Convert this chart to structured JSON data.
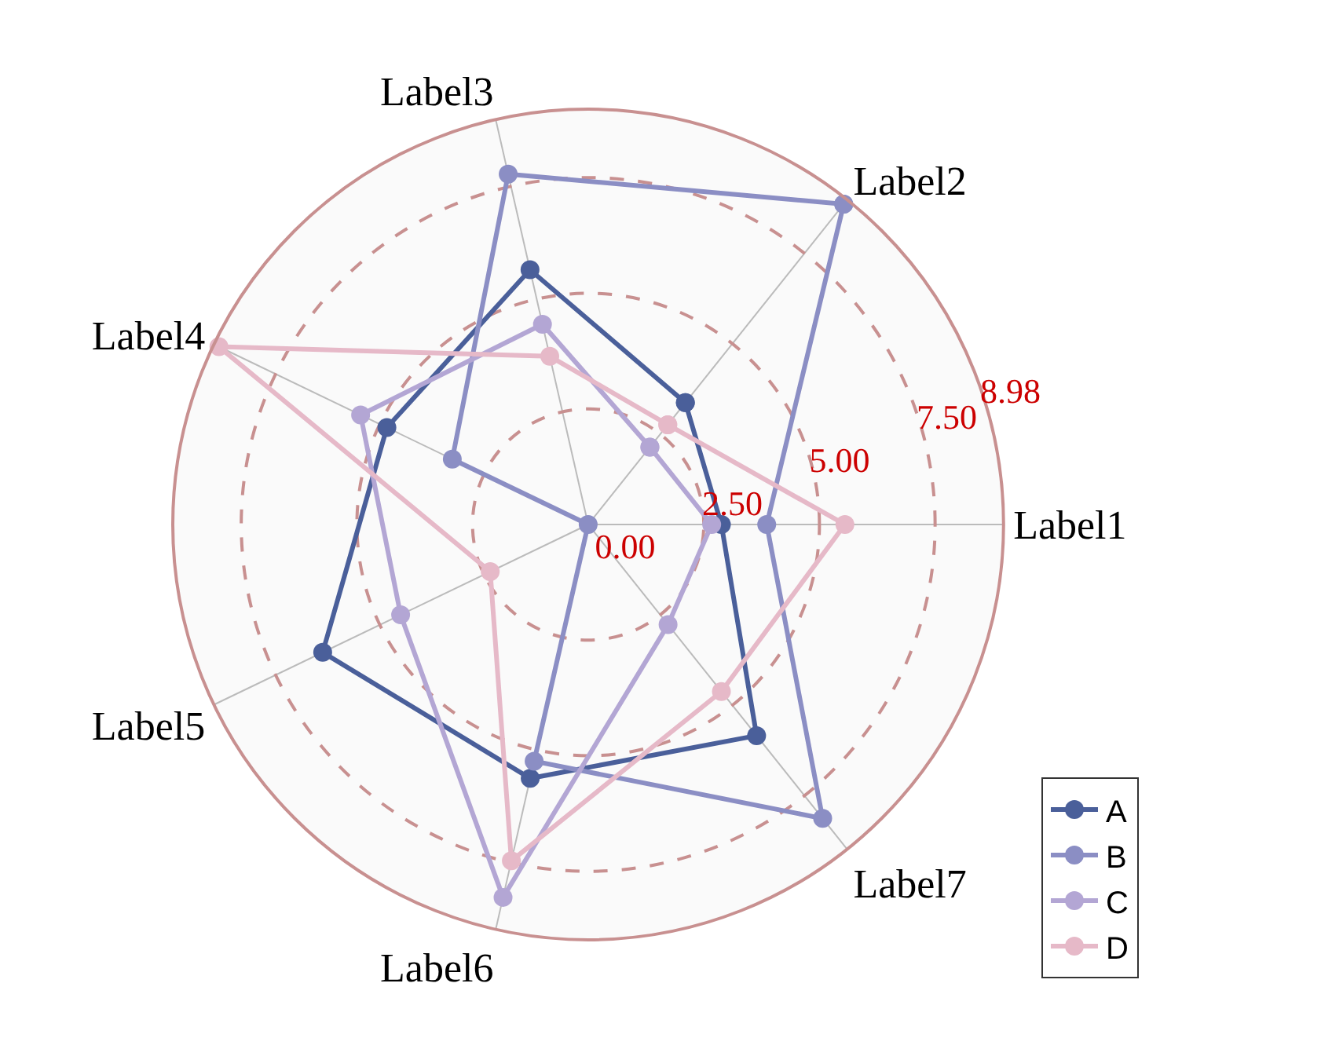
{
  "chart_data": {
    "type": "radar",
    "categories": [
      "Label2",
      "Label1",
      "Label7",
      "Label6",
      "Label5",
      "Label4",
      "Label3"
    ],
    "series": [
      {
        "name": "A",
        "color": "#4a5f9a",
        "values": [
          3.37,
          2.88,
          5.84,
          5.63,
          6.37,
          4.83,
          5.65
        ]
      },
      {
        "name": "B",
        "color": "#8b8ec4",
        "values": [
          8.86,
          3.86,
          8.13,
          5.25,
          0,
          3.26,
          7.77
        ]
      },
      {
        "name": "C",
        "color": "#b3a6d4",
        "values": [
          2.14,
          2.67,
          2.77,
          8.27,
          4.5,
          5.46,
          4.44
        ]
      },
      {
        "name": "D",
        "color": "#e6b9c8",
        "values": [
          2.76,
          5.55,
          4.62,
          7.46,
          2.35,
          8.86,
          3.73
        ]
      }
    ],
    "ylim": [
      0,
      8.98
    ],
    "yticks": [
      {
        "value": 0,
        "label": "0.00"
      },
      {
        "value": 2.5,
        "label": "2.50"
      },
      {
        "value": 5,
        "label": "5.00"
      },
      {
        "value": 7.5,
        "label": "7.50"
      },
      {
        "value": 8.98,
        "label": "8.98"
      }
    ],
    "grid": true,
    "legend": "bottom right",
    "marker": "circle",
    "line_style": "solid"
  }
}
